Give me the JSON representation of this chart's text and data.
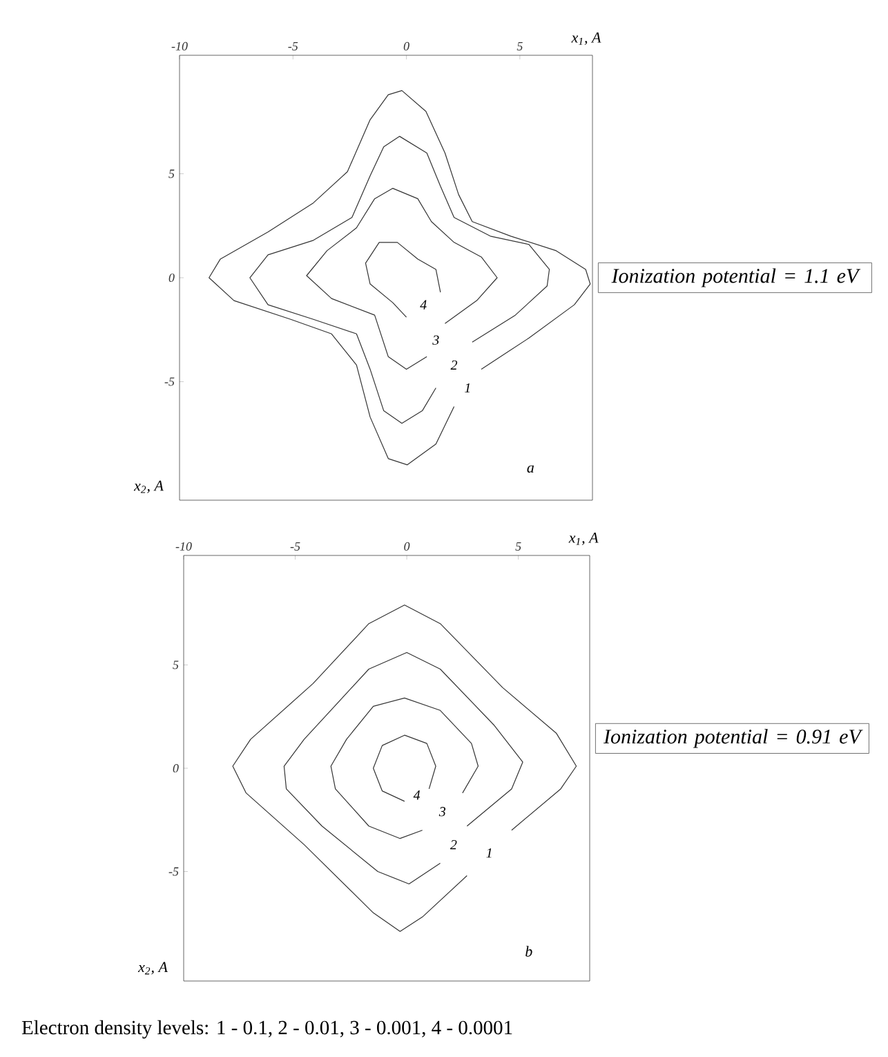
{
  "chart_data": [
    {
      "type": "line",
      "xlabel": "x$_{1}$, A",
      "ylabel": "x$_{2}$, A",
      "xlim": [
        -10,
        8.2
      ],
      "ylim": [
        -10.7,
        10.7
      ],
      "xticks": [
        -10,
        -5,
        0,
        5
      ],
      "yticks": [
        -5,
        0,
        5
      ],
      "marker": "none",
      "line_style": "solid",
      "series": [
        {
          "name": "1",
          "color": "#333333",
          "x": [
            2.1,
            1.3,
            0.04,
            -0.8,
            -1.6,
            -2.2,
            -3.3,
            -5.1,
            -7.6,
            -8.7,
            -8.2,
            -6.1,
            -4.1,
            -2.6,
            -1.6,
            -0.8,
            -0.2,
            0.86,
            1.7,
            2.3,
            2.9,
            4.6,
            6.6,
            7.9,
            8.1,
            7.4,
            5.4,
            3.3
          ],
          "values": [
            -6.2,
            -8.0,
            -9.0,
            -8.7,
            -6.7,
            -4.2,
            -2.7,
            -2.0,
            -1.1,
            0,
            0.9,
            2.2,
            3.6,
            5.1,
            7.6,
            8.8,
            9.0,
            8.0,
            6.0,
            4.0,
            2.7,
            2.0,
            1.3,
            0.4,
            -0.3,
            -1.3,
            -2.9,
            -4.4
          ]
        },
        {
          "name": "2",
          "color": "#333333",
          "x": [
            1.3,
            0.7,
            -0.2,
            -1.0,
            -1.6,
            -2.2,
            -4.1,
            -6.1,
            -6.9,
            -6.1,
            -4.1,
            -2.4,
            -1.6,
            -1.0,
            -0.3,
            0.9,
            1.5,
            2.1,
            3.7,
            5.4,
            6.3,
            6.2,
            4.8,
            2.9
          ],
          "values": [
            -5.3,
            -6.4,
            -7.0,
            -6.4,
            -4.4,
            -2.7,
            -2.0,
            -1.3,
            0,
            1.1,
            1.8,
            2.9,
            4.9,
            6.3,
            6.8,
            6.0,
            4.4,
            2.9,
            2.0,
            1.6,
            0.4,
            -0.4,
            -1.8,
            -3.1
          ]
        },
        {
          "name": "3",
          "color": "#333333",
          "x": [
            0.9,
            0,
            -0.8,
            -1.4,
            -3.3,
            -4.4,
            -3.5,
            -2.2,
            -1.4,
            -0.6,
            0.5,
            1.1,
            2.1,
            3.3,
            4.0,
            3.1,
            1.7
          ],
          "values": [
            -3.8,
            -4.4,
            -3.8,
            -1.8,
            -1.0,
            0.1,
            1.3,
            2.4,
            3.8,
            4.3,
            3.8,
            2.7,
            1.7,
            1.0,
            0,
            -1.1,
            -2.2
          ]
        },
        {
          "name": "4",
          "color": "#333333",
          "x": [
            0,
            -0.6,
            -1.6,
            -1.8,
            -1.2,
            -0.4,
            0.5,
            1.3,
            1.5
          ],
          "values": [
            -1.9,
            -1.2,
            -0.3,
            0.7,
            1.7,
            1.7,
            0.9,
            0.4,
            -0.7
          ]
        }
      ],
      "annotations": [
        "a",
        "Ionization potential = 1.1 eV"
      ]
    },
    {
      "type": "line",
      "xlabel": "x$_{1}$, A",
      "ylabel": "x$_{2}$, A",
      "xlim": [
        -10,
        8.2
      ],
      "ylim": [
        -10.3,
        10.3
      ],
      "xticks": [
        -10,
        -5,
        0,
        5
      ],
      "yticks": [
        -5,
        0,
        5
      ],
      "marker": "none",
      "line_style": "solid",
      "series": [
        {
          "name": "1",
          "color": "#333333",
          "x": [
            2.7,
            0.7,
            -0.3,
            -1.5,
            -4.6,
            -7.2,
            -7.8,
            -7.0,
            -4.2,
            -1.7,
            -0.1,
            1.5,
            4.3,
            6.7,
            7.6,
            6.9,
            4.7
          ],
          "values": [
            -5.2,
            -7.2,
            -7.9,
            -7.0,
            -3.7,
            -1.2,
            0.1,
            1.4,
            4.1,
            7.0,
            7.9,
            7.0,
            3.9,
            1.7,
            0.1,
            -1.0,
            -3.0
          ]
        },
        {
          "name": "2",
          "color": "#333333",
          "x": [
            1.5,
            0.1,
            -1.3,
            -3.8,
            -5.4,
            -5.5,
            -4.6,
            -1.7,
            0,
            1.5,
            3.9,
            5.2,
            4.7,
            2.7
          ],
          "values": [
            -4.6,
            -5.6,
            -5.0,
            -2.8,
            -1.0,
            0.1,
            1.4,
            4.8,
            5.6,
            4.8,
            2.1,
            0.3,
            -1.0,
            -2.8
          ]
        },
        {
          "name": "3",
          "color": "#333333",
          "x": [
            0.7,
            -0.3,
            -1.7,
            -3.2,
            -3.4,
            -2.7,
            -1.5,
            -0.1,
            1.5,
            2.9,
            3.2,
            2.5
          ],
          "values": [
            -3.0,
            -3.4,
            -2.8,
            -1.0,
            0.1,
            1.4,
            3.0,
            3.4,
            2.8,
            1.2,
            0.1,
            -1.2
          ]
        },
        {
          "name": "4",
          "color": "#333333",
          "x": [
            -0.1,
            -1.1,
            -1.5,
            -1.1,
            -0.1,
            0.9,
            1.3,
            1.0
          ],
          "values": [
            -1.6,
            -1.1,
            0,
            1.1,
            1.6,
            1.2,
            0.1,
            -1.0
          ]
        }
      ],
      "annotations": [
        "b",
        "Ionization potential = 0.91 eV",
        "Electron density levels: 1 - 0.1, 2 - 0.01, 3 - 0.001, 4 - 0.0001"
      ]
    }
  ]
}
